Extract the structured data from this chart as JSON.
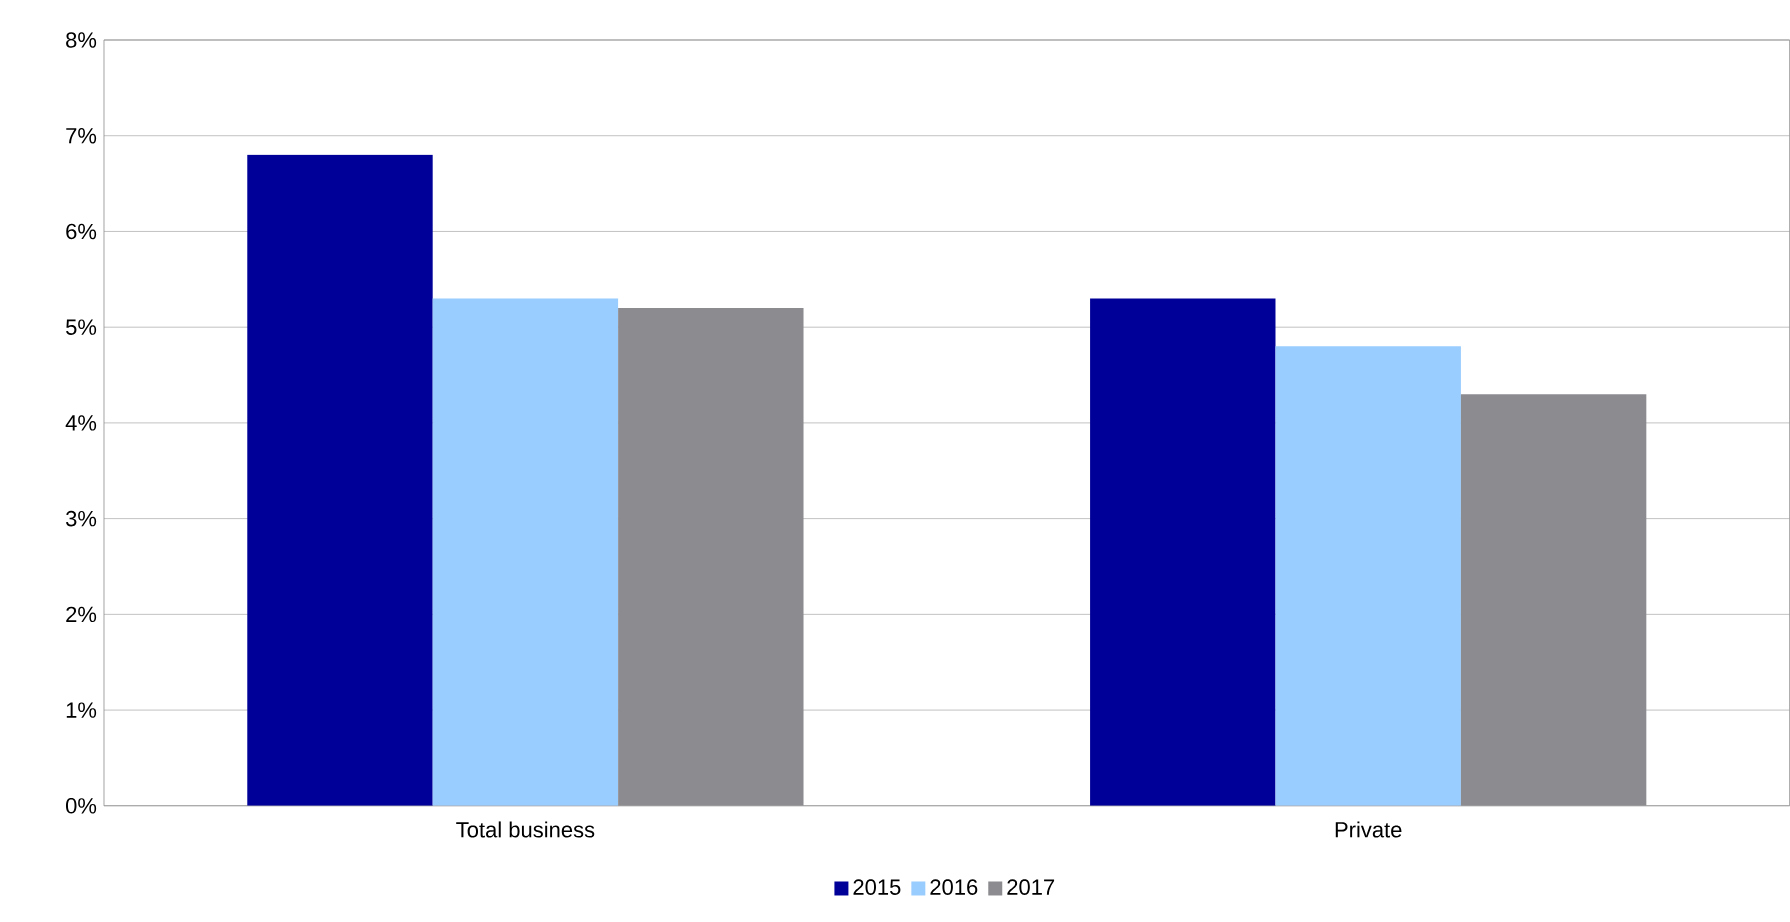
{
  "chart_data": {
    "type": "bar",
    "categories": [
      "Total business",
      "Private"
    ],
    "series": [
      {
        "name": "2015",
        "color": "#000099",
        "values": [
          6.8,
          5.3
        ]
      },
      {
        "name": "2016",
        "color": "#99ccff",
        "values": [
          5.3,
          4.8
        ]
      },
      {
        "name": "2017",
        "color": "#8c8b90",
        "values": [
          5.2,
          4.3
        ]
      }
    ],
    "ylim": [
      0,
      8
    ],
    "yticks": [
      {
        "value": 0,
        "label": "0%"
      },
      {
        "value": 1,
        "label": "1%"
      },
      {
        "value": 2,
        "label": "2%"
      },
      {
        "value": 3,
        "label": "3%"
      },
      {
        "value": 4,
        "label": "4%"
      },
      {
        "value": 5,
        "label": "5%"
      },
      {
        "value": 6,
        "label": "6%"
      },
      {
        "value": 7,
        "label": "7%"
      },
      {
        "value": 8,
        "label": "8%"
      }
    ],
    "grid": "y",
    "legend": "bottom"
  }
}
